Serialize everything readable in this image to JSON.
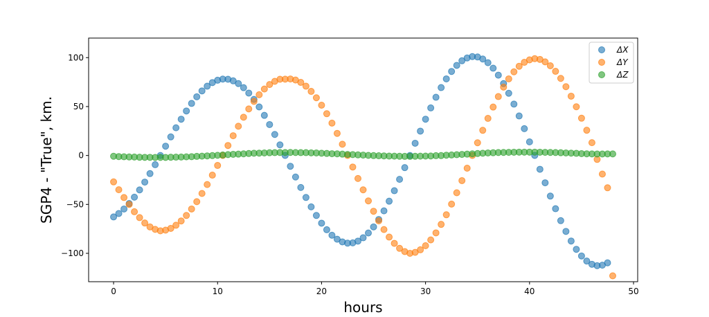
{
  "chart_data": {
    "type": "scatter",
    "title": "",
    "xlabel": "hours",
    "ylabel": "SGP4 - \"True\", km.",
    "xlim": [
      -2.4,
      50.4
    ],
    "ylim": [
      -129,
      120
    ],
    "xticks": [
      0,
      10,
      20,
      30,
      40,
      50
    ],
    "yticks": [
      -100,
      -50,
      0,
      50,
      100
    ],
    "xtick_labels": [
      "0",
      "10",
      "20",
      "30",
      "40",
      "50"
    ],
    "ytick_labels": [
      "−100",
      "−50",
      "0",
      "50",
      "100"
    ],
    "grid": false,
    "legend_position": "upper right",
    "x_step_hours": 0.5,
    "series": [
      {
        "name": "ΔX",
        "color": "#1f77b4",
        "x_start": 0,
        "values": [
          -62.8,
          -59.3,
          -54.7,
          -49.1,
          -42.6,
          -35.2,
          -27.2,
          -18.5,
          -9.4,
          0,
          9.5,
          19.0,
          28.3,
          37.1,
          45.5,
          53.2,
          60.0,
          66.0,
          70.8,
          74.5,
          76.9,
          78.1,
          77.9,
          76.3,
          73.5,
          69.3,
          63.8,
          57.3,
          49.6,
          41.0,
          31.6,
          21.5,
          10.9,
          0,
          -11.0,
          -22.0,
          -32.7,
          -42.9,
          -52.5,
          -61.3,
          -69.2,
          -75.9,
          -81.5,
          -85.6,
          -88.3,
          -89.6,
          -89.3,
          -87.5,
          -84.1,
          -79.2,
          -73.0,
          -65.4,
          -56.6,
          -46.7,
          -36.0,
          -24.4,
          -12.4,
          0,
          12.5,
          24.9,
          37.1,
          48.6,
          59.5,
          69.4,
          78.3,
          85.9,
          92.1,
          96.8,
          99.7,
          101.1,
          100.7,
          98.6,
          94.8,
          89.2,
          82.1,
          73.5,
          63.6,
          52.5,
          40.4,
          27.4,
          13.9,
          0,
          -14.1,
          -27.9,
          -41.5,
          -54.4,
          -66.6,
          -77.6,
          -87.4,
          -95.9,
          -102.7,
          -107.9,
          -111.2,
          -112.6,
          -112.1,
          -109.7
        ]
      },
      {
        "name": "ΔY",
        "color": "#ff7f0e",
        "x_start": 0,
        "values": [
          -27.0,
          -35.0,
          -43.0,
          -50.0,
          -57.5,
          -63.5,
          -69.0,
          -73.0,
          -75.5,
          -77.0,
          -76.3,
          -74.5,
          -71.3,
          -66.9,
          -61.3,
          -54.7,
          -47.2,
          -38.8,
          -29.7,
          -20.1,
          -10.2,
          0,
          10.2,
          20.2,
          29.9,
          39.1,
          47.6,
          55.3,
          62.1,
          67.9,
          72.5,
          75.8,
          77.9,
          78.0,
          78.2,
          77.1,
          74.7,
          70.8,
          65.5,
          59.0,
          51.4,
          42.7,
          33.1,
          22.6,
          11.5,
          0,
          -11.8,
          -23.5,
          -35.1,
          -46.4,
          -57.0,
          -66.8,
          -75.7,
          -83.4,
          -89.8,
          -94.9,
          -98.2,
          -100.0,
          -99.0,
          -96.4,
          -92.2,
          -86.3,
          -79.1,
          -70.4,
          -60.6,
          -49.7,
          -38.1,
          -25.7,
          -13.0,
          0,
          13.0,
          25.7,
          37.9,
          49.5,
          60.2,
          69.9,
          78.3,
          85.5,
          91.2,
          95.2,
          97.7,
          99.0,
          98.2,
          95.7,
          91.7,
          86.0,
          78.8,
          70.3,
          60.6,
          49.8,
          38.1,
          25.8,
          13.1,
          -4.0,
          -19.0,
          -33.0,
          -123.0
        ]
      },
      {
        "name": "ΔZ",
        "color": "#2ca02c",
        "x_start": 0,
        "values": [
          -0.8,
          -1.1,
          -1.3,
          -1.5,
          -1.6,
          -1.8,
          -1.9,
          -1.9,
          -2.0,
          -2.0,
          -2.0,
          -1.8,
          -1.7,
          -1.6,
          -1.4,
          -1.2,
          -0.9,
          -0.7,
          -0.4,
          -0.1,
          0.2,
          0.5,
          0.9,
          1.2,
          1.4,
          1.7,
          2.0,
          2.3,
          2.4,
          2.6,
          2.8,
          2.9,
          3.0,
          3.0,
          3.1,
          3.0,
          2.9,
          2.9,
          2.7,
          2.6,
          2.3,
          2.1,
          1.8,
          1.7,
          1.4,
          1.1,
          0.9,
          0.6,
          0.4,
          0.1,
          -0.1,
          -0.3,
          -0.4,
          -0.6,
          -0.7,
          -0.8,
          -0.9,
          -0.9,
          -0.8,
          -0.7,
          -0.6,
          -0.5,
          -0.2,
          -0.1,
          0.3,
          0.5,
          0.8,
          1.1,
          1.4,
          1.7,
          2.0,
          2.3,
          2.6,
          2.8,
          3.0,
          3.1,
          3.2,
          3.3,
          3.4,
          3.4,
          3.4,
          3.4,
          3.3,
          3.2,
          3.1,
          3.0,
          2.8,
          2.6,
          2.4,
          2.2,
          1.9,
          1.7,
          1.6,
          1.5,
          1.5,
          1.6,
          1.6
        ]
      }
    ]
  },
  "legend": {
    "items": [
      {
        "label": "ΔX",
        "color": "#1f77b4"
      },
      {
        "label": "ΔY",
        "color": "#ff7f0e"
      },
      {
        "label": "ΔZ",
        "color": "#2ca02c"
      }
    ]
  },
  "axes": {
    "xlabel": "hours",
    "ylabel": "SGP4 - \"True\", km."
  }
}
